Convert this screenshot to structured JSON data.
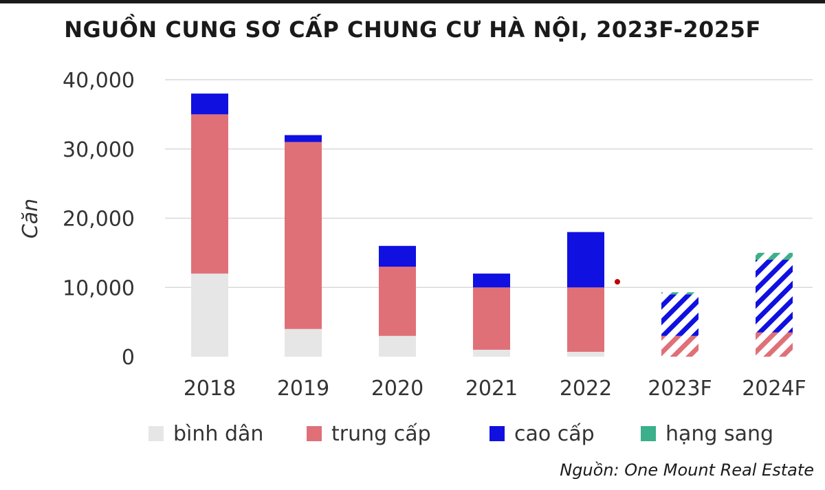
{
  "header": {
    "title": "NGUỒN CUNG SƠ CẤP CHUNG CƯ HÀ NỘI, 2023F-2025F"
  },
  "chart_data": {
    "type": "bar",
    "stacked": true,
    "title": "NGUỒN CUNG SƠ CẤP CHUNG CƯ HÀ NỘI, 2023F-2025F",
    "xlabel": "",
    "ylabel": "Căn",
    "ylim": [
      0,
      40000
    ],
    "yticks": [
      0,
      10000,
      20000,
      30000,
      40000
    ],
    "ytick_labels": [
      "0",
      "10,000",
      "20,000",
      "30,000",
      "40,000"
    ],
    "grid": true,
    "legend_position": "bottom",
    "categories": [
      "2018",
      "2019",
      "2020",
      "2021",
      "2022",
      "2023F",
      "2024F"
    ],
    "forecast_categories": [
      "2023F",
      "2024F"
    ],
    "series": [
      {
        "name": "bình dân",
        "color": "#e6e6e6",
        "values": [
          12000,
          4000,
          3000,
          1000,
          700,
          0,
          0
        ]
      },
      {
        "name": "trung cấp",
        "color": "#e07078",
        "values": [
          23000,
          27000,
          10000,
          9000,
          9300,
          3000,
          3500
        ]
      },
      {
        "name": "cao cấp",
        "color": "#1010e0",
        "values": [
          3000,
          1000,
          3000,
          2000,
          8000,
          6000,
          10500
        ]
      },
      {
        "name": "hạng sang",
        "color": "#3bb08a",
        "values": [
          0,
          0,
          0,
          0,
          0,
          300,
          1000
        ]
      }
    ]
  },
  "footer": {
    "source": "Nguồn: One Mount Real Estate"
  }
}
